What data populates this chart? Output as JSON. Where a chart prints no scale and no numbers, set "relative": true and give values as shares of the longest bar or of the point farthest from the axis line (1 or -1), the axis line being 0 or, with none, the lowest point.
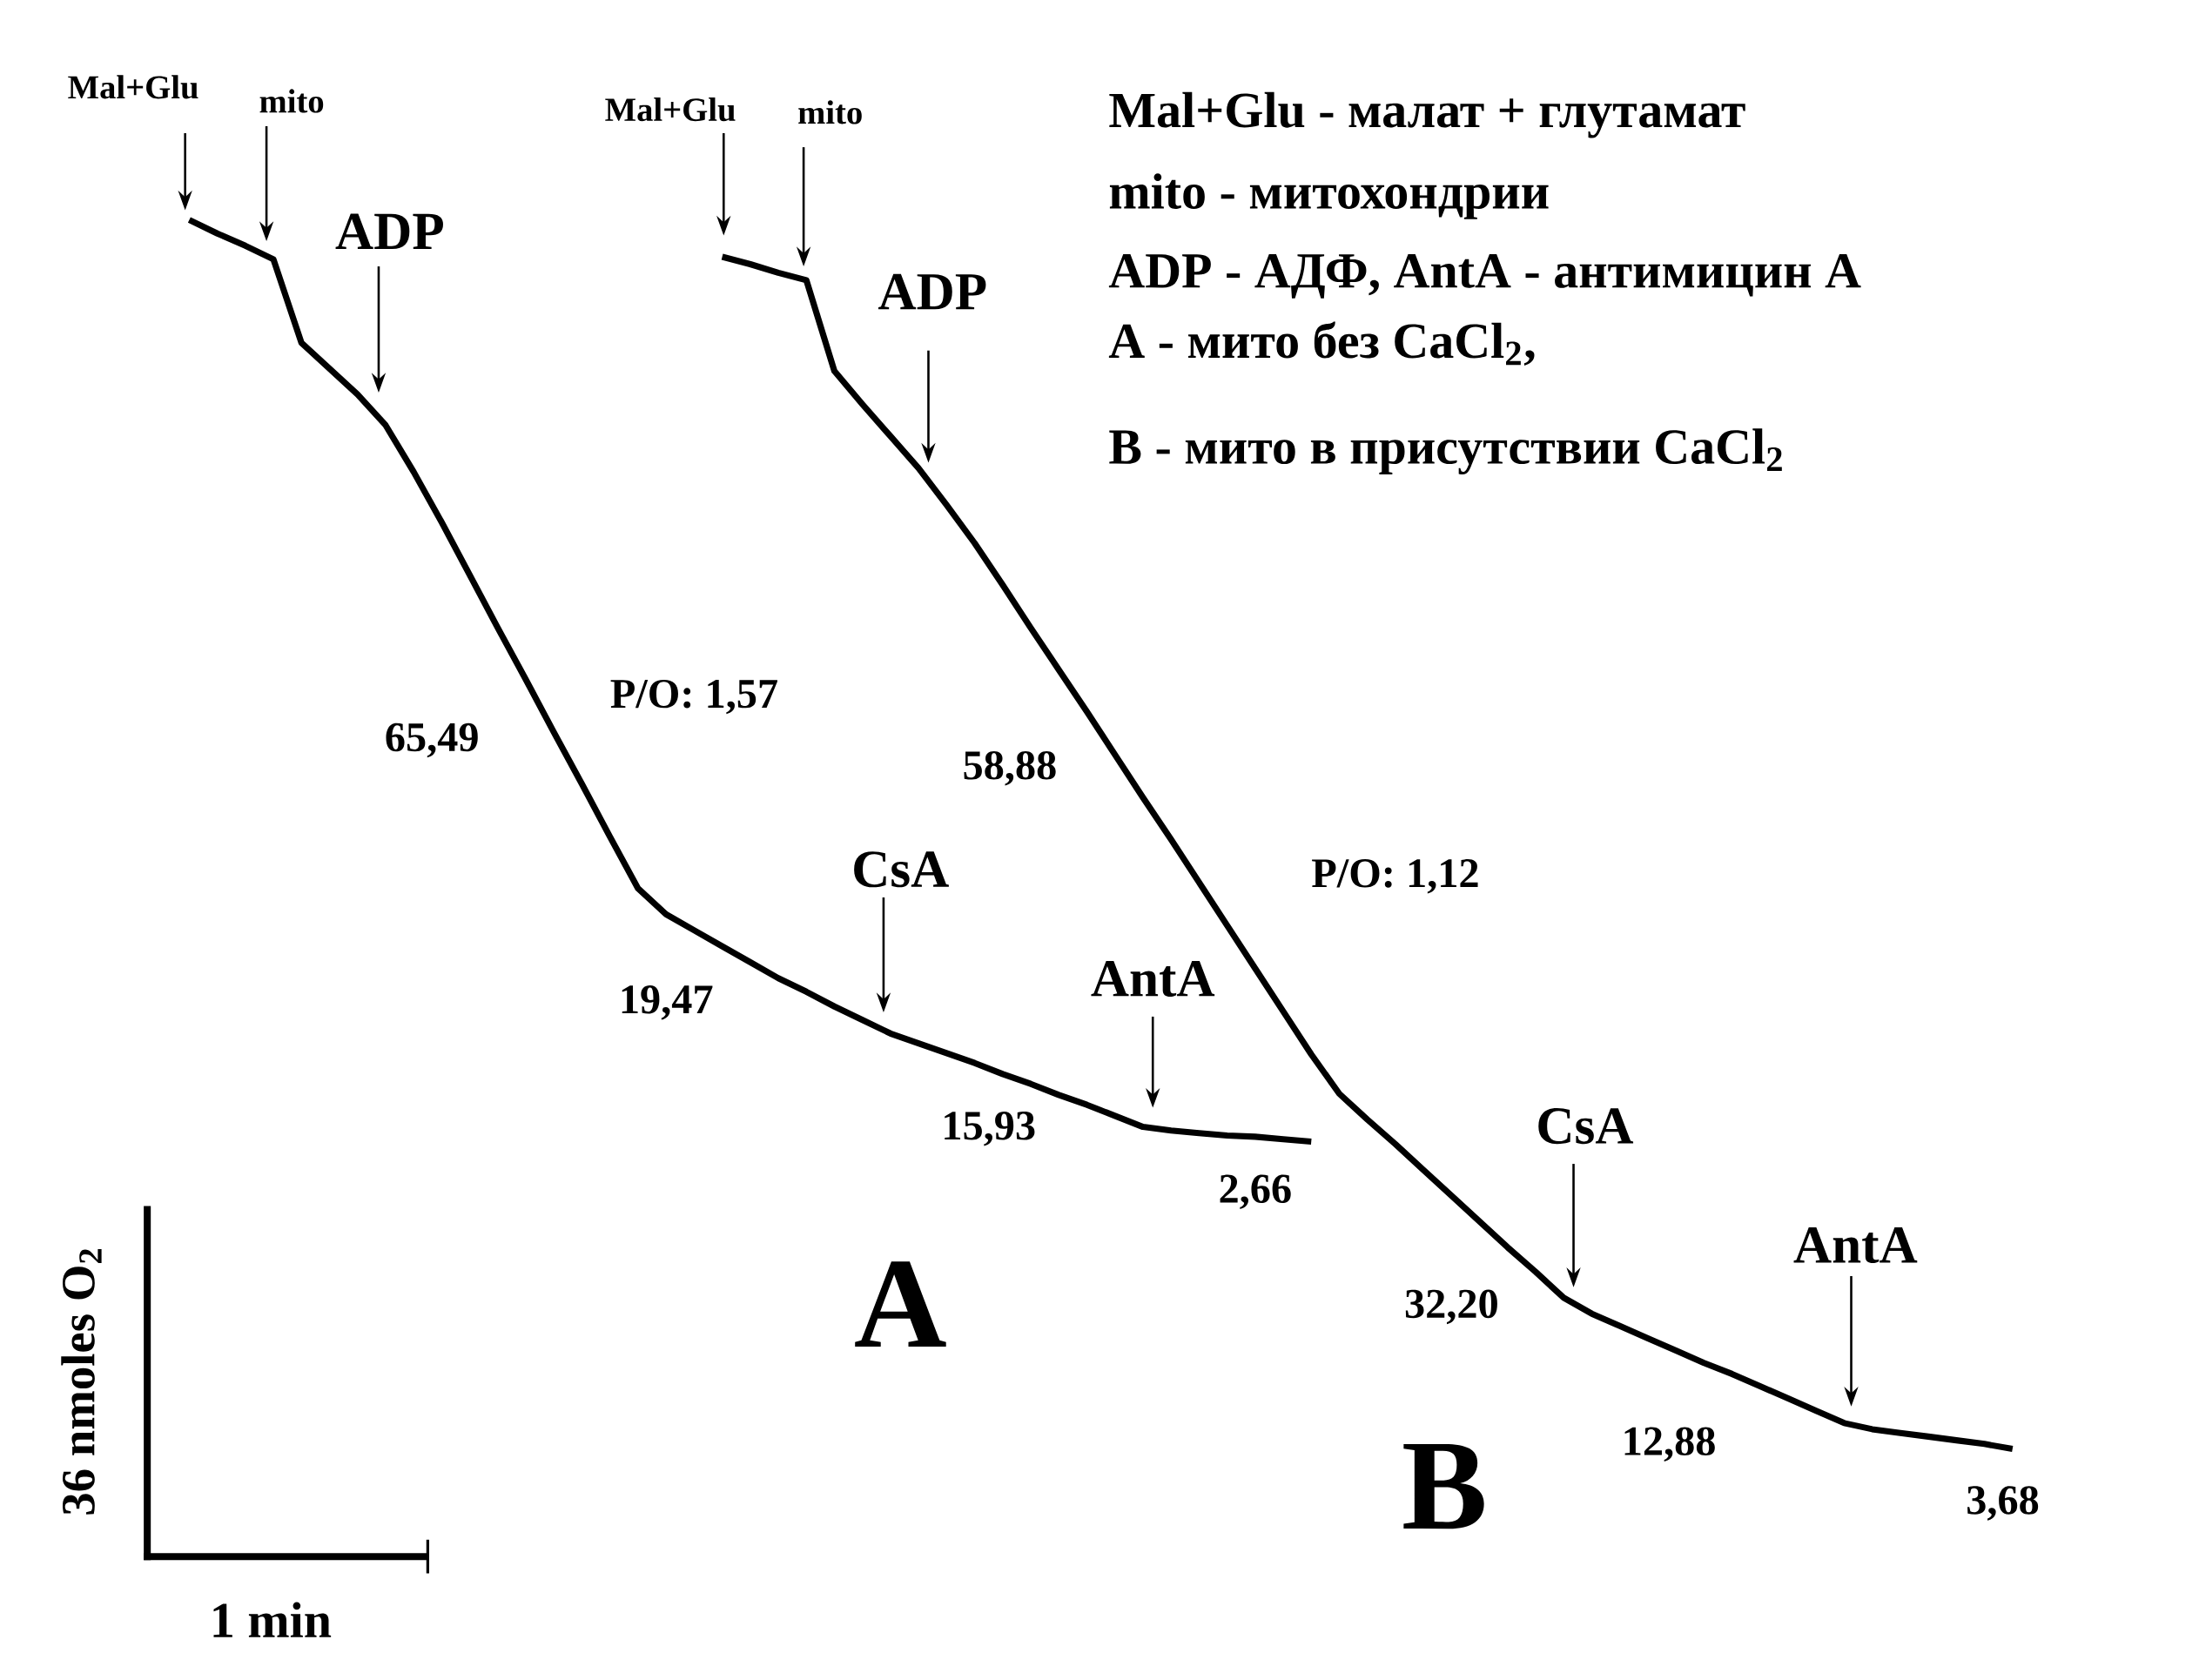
{
  "chart_data": {
    "type": "line",
    "relative": true,
    "categories": [
      null,
      null,
      null,
      null,
      null,
      null,
      null,
      null,
      null,
      null,
      null,
      null,
      null,
      null,
      null,
      null,
      null,
      null,
      null,
      null,
      null,
      null,
      null,
      null,
      null,
      null,
      null,
      null,
      null,
      null,
      null,
      null,
      null,
      null,
      null,
      null,
      null,
      null,
      null,
      null,
      null,
      null,
      null,
      null,
      null,
      null,
      null,
      null,
      null,
      null,
      null,
      null,
      null,
      null,
      null,
      null,
      null,
      null,
      null,
      null,
      null,
      null,
      null,
      null,
      null,
      null
    ],
    "series": [
      {
        "color": "#000000",
        "values": [
          1.0,
          0.989,
          0.979,
          0.968,
          0.9,
          0.879,
          0.858,
          0.833,
          0.795,
          0.754,
          0.711,
          0.668,
          0.626,
          0.583,
          0.541,
          0.498,
          0.456,
          0.435,
          0.422,
          0.409,
          0.396,
          0.383,
          0.372,
          0.36,
          0.349,
          0.338,
          0.33,
          0.322,
          0.314,
          0.305,
          0.297,
          0.288,
          0.28,
          0.271,
          0.262,
          0.259,
          0.257,
          0.255,
          0.254,
          0.252,
          0.25,
          null,
          null,
          null,
          null,
          null,
          null,
          null,
          null,
          null,
          null,
          null,
          null,
          null,
          null,
          null,
          null,
          null,
          null,
          null,
          null,
          null,
          null,
          null,
          null,
          null
        ]
      },
      {
        "color": "#000000",
        "values": [
          null,
          null,
          null,
          null,
          null,
          null,
          null,
          null,
          null,
          null,
          null,
          null,
          null,
          null,
          null,
          null,
          null,
          null,
          null,
          0.97,
          0.964,
          0.957,
          0.951,
          0.877,
          0.85,
          0.824,
          0.798,
          0.768,
          0.737,
          0.703,
          0.668,
          0.634,
          0.6,
          0.565,
          0.53,
          0.496,
          0.461,
          0.426,
          0.391,
          0.356,
          0.321,
          0.289,
          0.268,
          0.248,
          0.227,
          0.206,
          0.185,
          0.164,
          0.144,
          0.123,
          0.11,
          0.1,
          0.09,
          0.08,
          0.07,
          0.061,
          0.051,
          0.041,
          0.031,
          0.021,
          0.016,
          0.013,
          0.01,
          0.007,
          0.004,
          0.0
        ]
      }
    ],
    "annotations": [
      "Mal+Glu",
      "mito",
      "ADP",
      "Mal+Glu",
      "mito",
      "ADP",
      "CsA",
      "AntA",
      "CsA",
      "AntA",
      "65,49",
      "P/O: 1,57",
      "19,47",
      "15,93",
      "2,66",
      "58,88",
      "P/O: 1,12",
      "32,20",
      "12,88",
      "3,68",
      "A",
      "B",
      "Mal+Glu - малат + глутамат",
      "mito - митохондрии",
      "ADP - АДФ, AntA - антимицин A",
      "A - мито без CaCl$_{2}$,",
      "B - мито в присутствии CaCl$_{2}$",
      "36 nmoles O$_{2}$",
      "1 min"
    ]
  }
}
